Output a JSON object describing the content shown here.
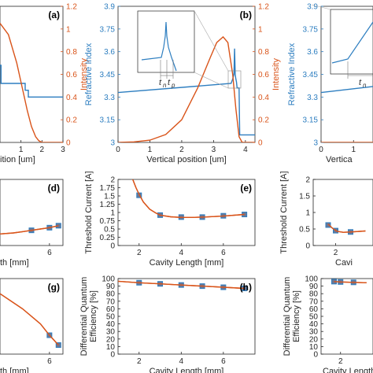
{
  "figure": {
    "colors": {
      "blue": "#2d7ec0",
      "orange": "#d9541a",
      "axis": "#262626",
      "grid": "#e6e6e6",
      "marker": "#6b7896"
    }
  },
  "chart_data": [
    {
      "id": "a",
      "type": "line",
      "panel_label": "(a)",
      "xlabel": "ition [um]",
      "ylabel": "",
      "y2label": "Intensity",
      "xlim": [
        0,
        3
      ],
      "ylim2": [
        0,
        1.2
      ],
      "xticks": [
        "1",
        "2",
        "3"
      ],
      "y2ticks": [
        "0",
        "0.2",
        "0.4",
        "0.6",
        "0.8",
        "1",
        "1.2"
      ],
      "series": [
        {
          "color": "#2d7ec0",
          "axis": "left",
          "y2_equiv": true,
          "x": [
            0,
            0.05,
            0.05,
            1.2,
            1.2,
            1.35,
            1.35,
            1.5,
            1.5,
            3
          ],
          "y": [
            0.68,
            0.68,
            0.52,
            0.52,
            0.46,
            0.46,
            0.4,
            0.4,
            0.4,
            0.4
          ]
        },
        {
          "color": "#d9541a",
          "axis": "right",
          "x": [
            0,
            0.4,
            0.8,
            1.1,
            1.3,
            1.5,
            1.7,
            1.85,
            2.0,
            2.2,
            3
          ],
          "y": [
            1.05,
            0.95,
            0.7,
            0.45,
            0.28,
            0.14,
            0.05,
            0.015,
            0,
            0,
            0
          ]
        }
      ]
    },
    {
      "id": "b",
      "type": "line",
      "panel_label": "(b)",
      "xlabel": "Vertical position [um]",
      "ylabel": "Refractive Index",
      "y2label": "Intensity",
      "xlim": [
        0,
        4.3
      ],
      "ylim": [
        3,
        3.9
      ],
      "ylim2": [
        0,
        1.2
      ],
      "xticks": [
        "0",
        "1",
        "2",
        "3",
        "4"
      ],
      "yticks": [
        "3",
        "3.15",
        "3.3",
        "3.45",
        "3.6",
        "3.75",
        "3.9"
      ],
      "y2ticks": [
        "0",
        "0.2",
        "0.4",
        "0.6",
        "0.8",
        "1",
        "1.2"
      ],
      "inset_labels": [
        "t",
        "n",
        "t",
        "p"
      ],
      "series": [
        {
          "color": "#2d7ec0",
          "axis": "left",
          "x": [
            0,
            3.55,
            3.6,
            3.64,
            3.66,
            3.68,
            3.7,
            3.72,
            3.74,
            3.8,
            3.82,
            4.3
          ],
          "y": [
            3.33,
            3.39,
            3.42,
            3.45,
            3.62,
            3.45,
            3.42,
            3.4,
            3.36,
            3.36,
            3.05,
            3.05
          ]
        },
        {
          "color": "#d9541a",
          "axis": "right",
          "x": [
            0,
            0.5,
            1.0,
            1.5,
            2.0,
            2.5,
            2.9,
            3.1,
            3.3,
            3.45,
            3.6,
            3.7,
            3.8,
            3.9,
            4.3
          ],
          "y": [
            0,
            0.005,
            0.02,
            0.07,
            0.2,
            0.48,
            0.75,
            0.88,
            0.93,
            0.88,
            0.6,
            0.3,
            0.05,
            0,
            0
          ]
        }
      ]
    },
    {
      "id": "c",
      "type": "line",
      "panel_label": "",
      "xlabel": "Vertica",
      "ylabel": "Refractive Index",
      "xlim": [
        0,
        1.6
      ],
      "ylim": [
        3,
        3.9
      ],
      "xticks": [
        "0",
        "1"
      ],
      "yticks": [
        "3",
        "3.15",
        "3.3",
        "3.45",
        "3.6",
        "3.75",
        "3.9"
      ],
      "inset_labels": [
        "t",
        "n"
      ],
      "series": [
        {
          "color": "#2d7ec0",
          "axis": "left",
          "x": [
            0,
            1.6
          ],
          "y": [
            3.33,
            3.37
          ]
        },
        {
          "color": "#d9541a",
          "axis": "left",
          "x": [
            0,
            1.6
          ],
          "y": [
            3.0,
            3.0
          ]
        }
      ]
    },
    {
      "id": "d",
      "type": "line",
      "panel_label": "(d)",
      "xlabel": "th [mm]",
      "ylabel": "",
      "xlim": [
        0.5,
        7.5
      ],
      "ylim": [
        0,
        2
      ],
      "xticks": [
        "6"
      ],
      "series": [
        {
          "color": "#d9541a",
          "x": [
            0.5,
            2,
            3,
            4,
            5,
            6,
            7
          ],
          "y": [
            0.35,
            0.38,
            0.42,
            0.46,
            0.5,
            0.54,
            0.6
          ]
        },
        {
          "color": "#2d7ec0",
          "markers": true,
          "x": [
            4,
            6,
            7
          ],
          "y": [
            0.46,
            0.54,
            0.6
          ]
        }
      ]
    },
    {
      "id": "e",
      "type": "line",
      "panel_label": "(e)",
      "xlabel": "Cavity Length [mm]",
      "ylabel": "Threshold Current [A]",
      "xlim": [
        1,
        7.5
      ],
      "ylim": [
        0,
        2
      ],
      "xticks": [
        "2",
        "4",
        "6"
      ],
      "yticks": [
        "0",
        "0.25",
        "0.5",
        "0.75",
        "1",
        "1.25",
        "1.5",
        "1.75",
        "2"
      ],
      "series": [
        {
          "color": "#d9541a",
          "x": [
            1.7,
            1.85,
            2.0,
            2.2,
            2.5,
            2.8,
            3.0,
            3.5,
            4.0,
            4.5,
            5.0,
            6.0,
            7.0
          ],
          "y": [
            2.0,
            1.75,
            1.55,
            1.32,
            1.1,
            0.98,
            0.92,
            0.87,
            0.85,
            0.85,
            0.86,
            0.89,
            0.94
          ]
        },
        {
          "color": "#2d7ec0",
          "markers": true,
          "x": [
            2,
            3,
            4,
            5,
            6,
            7
          ],
          "y": [
            1.52,
            0.92,
            0.86,
            0.86,
            0.9,
            0.94
          ]
        }
      ]
    },
    {
      "id": "f",
      "type": "line",
      "panel_label": "",
      "xlabel": "Cavi",
      "ylabel": "Threshold Current [A]",
      "xlim": [
        0.5,
        4.5
      ],
      "ylim": [
        0,
        2
      ],
      "xticks": [
        "2"
      ],
      "yticks": [
        "0",
        "0.5",
        "1",
        "1.5",
        "2"
      ],
      "series": [
        {
          "color": "#d9541a",
          "x": [
            1.5,
            1.8,
            2.1,
            2.5,
            3.0,
            4.0
          ],
          "y": [
            0.65,
            0.52,
            0.43,
            0.4,
            0.41,
            0.44
          ]
        },
        {
          "color": "#2d7ec0",
          "markers": true,
          "x": [
            1.5,
            2.0,
            3.0
          ],
          "y": [
            0.62,
            0.45,
            0.41
          ]
        }
      ]
    },
    {
      "id": "g",
      "type": "line",
      "panel_label": "(g)",
      "xlabel": "th [mm]",
      "ylabel": "",
      "xlim": [
        0.5,
        7.5
      ],
      "ylim": [
        0,
        1
      ],
      "xticks": [
        "6"
      ],
      "series": [
        {
          "color": "#d9541a",
          "x": [
            0.5,
            3,
            5,
            6,
            7
          ],
          "y": [
            0.8,
            0.6,
            0.4,
            0.25,
            0.12
          ]
        },
        {
          "color": "#2d7ec0",
          "markers": true,
          "x": [
            6,
            7
          ],
          "y": [
            0.25,
            0.12
          ]
        }
      ]
    },
    {
      "id": "h",
      "type": "line",
      "panel_label": "(h)",
      "xlabel": "Cavity Length [mm]",
      "ylabel": "Differential Quantum Efficiency [%]",
      "xlim": [
        1,
        7.5
      ],
      "ylim": [
        0,
        100
      ],
      "xticks": [
        "2",
        "4",
        "6"
      ],
      "yticks": [
        "0",
        "10",
        "20",
        "30",
        "40",
        "50",
        "60",
        "70",
        "80",
        "90",
        "100"
      ],
      "series": [
        {
          "color": "#d9541a",
          "x": [
            1,
            2,
            3,
            4,
            5,
            6,
            7
          ],
          "y": [
            96.5,
            94.5,
            93,
            91.5,
            90,
            88.5,
            87
          ]
        },
        {
          "color": "#2d7ec0",
          "markers": true,
          "x": [
            2,
            3,
            4,
            5,
            6,
            7
          ],
          "y": [
            94.5,
            93,
            91.5,
            90,
            88.5,
            87
          ]
        }
      ]
    },
    {
      "id": "i",
      "type": "line",
      "panel_label": "",
      "xlabel": "Cavity Length [mm]",
      "ylabel": "Differential Quantum Efficiency [%]",
      "xlim": [
        0.5,
        4.5
      ],
      "ylim": [
        0,
        100
      ],
      "xticks": [
        "2"
      ],
      "yticks": [
        "0",
        "10",
        "20",
        "30",
        "40",
        "50",
        "60",
        "70",
        "80",
        "90",
        "100"
      ],
      "series": [
        {
          "color": "#d9541a",
          "x": [
            1.5,
            2.0,
            3.0,
            4.0
          ],
          "y": [
            96,
            95.5,
            95,
            94.5
          ]
        },
        {
          "color": "#2d7ec0",
          "markers": true,
          "x": [
            1.5,
            2.0,
            3.0
          ],
          "y": [
            96,
            95.5,
            95
          ]
        }
      ]
    }
  ]
}
